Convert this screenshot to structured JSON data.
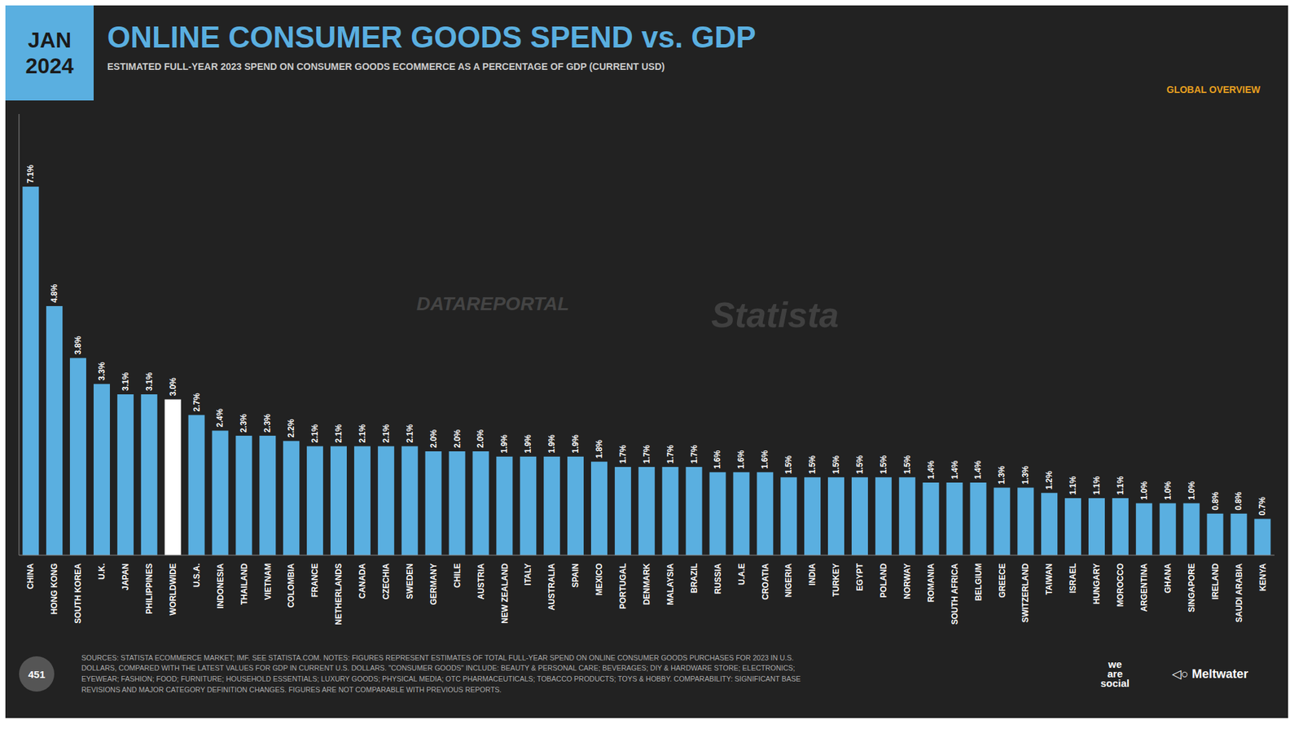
{
  "chart_data": {
    "type": "bar",
    "title": "ONLINE CONSUMER GOODS SPEND vs. GDP",
    "subtitle": "ESTIMATED FULL-YEAR 2023 SPEND ON CONSUMER GOODS ECOMMERCE AS A PERCENTAGE OF GDP (CURRENT USD)",
    "annotations": [
      "JAN",
      "2024",
      "GLOBAL OVERVIEW",
      "DATAREPORTAL",
      "Statista",
      "SOURCES: STATISTA ECOMMERCE MARKET; IMF. SEE STATISTA.COM.  NOTES: FIGURES REPRESENT ESTIMATES OF TOTAL FULL-YEAR SPEND ON ONLINE CONSUMER GOODS PURCHASES FOR 2023 IN U.S.\nDOLLARS, COMPARED WITH THE LATEST VALUES FOR GDP IN CURRENT U.S. DOLLARS. \"CONSUMER GOODS\" INCLUDE: BEAUTY & PERSONAL CARE; BEVERAGES; DIY & HARDWARE STORE; ELECTRONICS;\nEYEWEAR; FASHION; FOOD; FURNITURE; HOUSEHOLD ESSENTIALS; LUXURY GOODS; PHYSICAL MEDIA; OTC PHARMACEUTICALS; TOBACCO PRODUCTS; TOYS & HOBBY.  COMPARABILITY: SIGNIFICANT BASE\nREVISIONS AND MAJOR CATEGORY DEFINITION CHANGES. FIGURES ARE NOT COMPARABLE WITH PREVIOUS REPORTS.",
      "451",
      "we\nare\nsocial",
      "◁○ Meltwater"
    ],
    "categories": [
      "CHINA",
      "HONG KONG",
      "SOUTH KOREA",
      "U.K.",
      "JAPAN",
      "PHILIPPINES",
      "WORLDWIDE",
      "U.S.A.",
      "INDONESIA",
      "THAILAND",
      "VIETNAM",
      "COLOMBIA",
      "FRANCE",
      "NETHERLANDS",
      "CANADA",
      "CZECHIA",
      "SWEDEN",
      "GERMANY",
      "CHILE",
      "AUSTRIA",
      "NEW ZEALAND",
      "ITALY",
      "AUSTRALIA",
      "SPAIN",
      "MEXICO",
      "PORTUGAL",
      "DENMARK",
      "MALAYSIA",
      "BRAZIL",
      "RUSSIA",
      "U.A.E",
      "CROATIA",
      "NIGERIA",
      "INDIA",
      "TURKEY",
      "EGYPT",
      "POLAND",
      "NORWAY",
      "ROMANIA",
      "SOUTH AFRICA",
      "BELGIUM",
      "GREECE",
      "SWITZERLAND",
      "TAIWAN",
      "ISRAEL",
      "HUNGARY",
      "MOROCCO",
      "ARGENTINA",
      "GHANA",
      "SINGAPORE",
      "IRELAND",
      "SAUDI ARABIA",
      "KENYA"
    ],
    "values": [
      7.1,
      4.8,
      3.8,
      3.3,
      3.1,
      3.1,
      3.0,
      2.7,
      2.4,
      2.3,
      2.3,
      2.2,
      2.1,
      2.1,
      2.1,
      2.1,
      2.1,
      2.0,
      2.0,
      2.0,
      1.9,
      1.9,
      1.9,
      1.9,
      1.8,
      1.7,
      1.7,
      1.7,
      1.7,
      1.6,
      1.6,
      1.6,
      1.5,
      1.5,
      1.5,
      1.5,
      1.5,
      1.5,
      1.4,
      1.4,
      1.4,
      1.3,
      1.3,
      1.2,
      1.1,
      1.1,
      1.1,
      1.0,
      1.0,
      1.0,
      0.8,
      0.8,
      0.7
    ],
    "value_labels": [
      "7.1%",
      "4.8%",
      "3.8%",
      "3.3%",
      "3.1%",
      "3.1%",
      "3.0%",
      "2.7%",
      "2.4%",
      "2.3%",
      "2.3%",
      "2.2%",
      "2.1%",
      "2.1%",
      "2.1%",
      "2.1%",
      "2.1%",
      "2.0%",
      "2.0%",
      "2.0%",
      "1.9%",
      "1.9%",
      "1.9%",
      "1.9%",
      "1.8%",
      "1.7%",
      "1.7%",
      "1.7%",
      "1.7%",
      "1.6%",
      "1.6%",
      "1.6%",
      "1.5%",
      "1.5%",
      "1.5%",
      "1.5%",
      "1.5%",
      "1.5%",
      "1.4%",
      "1.4%",
      "1.4%",
      "1.3%",
      "1.3%",
      "1.2%",
      "1.1%",
      "1.1%",
      "1.1%",
      "1.0%",
      "1.0%",
      "1.0%",
      "0.8%",
      "0.8%",
      "0.7%"
    ],
    "colors": [
      "#5aafe0",
      "#5aafe0",
      "#5aafe0",
      "#5aafe0",
      "#5aafe0",
      "#5aafe0",
      "#ffffff",
      "#5aafe0",
      "#5aafe0",
      "#5aafe0",
      "#5aafe0",
      "#5aafe0",
      "#5aafe0",
      "#5aafe0",
      "#5aafe0",
      "#5aafe0",
      "#5aafe0",
      "#5aafe0",
      "#5aafe0",
      "#5aafe0",
      "#5aafe0",
      "#5aafe0",
      "#5aafe0",
      "#5aafe0",
      "#5aafe0",
      "#5aafe0",
      "#5aafe0",
      "#5aafe0",
      "#5aafe0",
      "#5aafe0",
      "#5aafe0",
      "#5aafe0",
      "#5aafe0",
      "#5aafe0",
      "#5aafe0",
      "#5aafe0",
      "#5aafe0",
      "#5aafe0",
      "#5aafe0",
      "#5aafe0",
      "#5aafe0",
      "#5aafe0",
      "#5aafe0",
      "#5aafe0",
      "#5aafe0",
      "#5aafe0",
      "#5aafe0",
      "#5aafe0",
      "#5aafe0",
      "#5aafe0",
      "#5aafe0",
      "#5aafe0",
      "#5aafe0"
    ],
    "ylim": [
      0,
      8.5
    ],
    "grid": false,
    "data_labels": true,
    "tick_labels": "x"
  }
}
